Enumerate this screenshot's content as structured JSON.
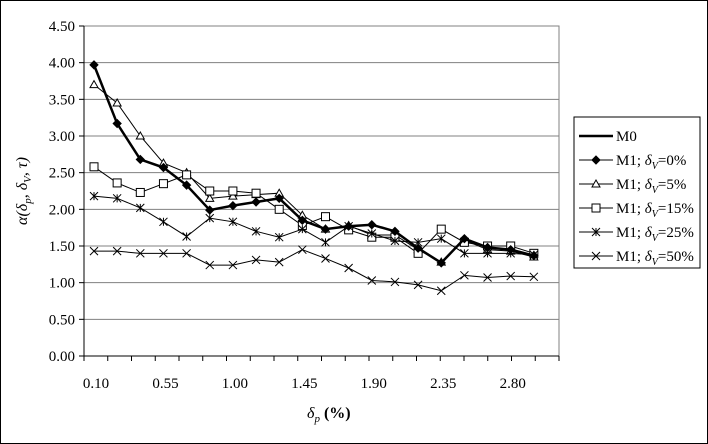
{
  "chart_data": {
    "type": "line",
    "xlabel": "δp (%)",
    "ylabel": "α(δp, δV, τ)",
    "ylim": [
      0,
      4.5
    ],
    "y_ticks": [
      "0.00",
      "0.50",
      "1.00",
      "1.50",
      "2.00",
      "2.50",
      "3.00",
      "3.50",
      "4.00",
      "4.50"
    ],
    "x_tick_labels": [
      "0.10",
      "0.55",
      "1.00",
      "1.45",
      "1.90",
      "2.35",
      "2.80"
    ],
    "x": [
      0.1,
      0.25,
      0.4,
      0.55,
      0.7,
      0.85,
      1.0,
      1.15,
      1.3,
      1.45,
      1.6,
      1.75,
      1.9,
      2.05,
      2.2,
      2.35,
      2.5,
      2.65,
      2.8,
      2.95
    ],
    "grid": true,
    "legend_position": "right",
    "series": [
      {
        "name": "M0",
        "marker": "none",
        "values": [
          3.97,
          3.17,
          2.68,
          2.57,
          2.33,
          1.99,
          2.05,
          2.1,
          2.15,
          1.85,
          1.73,
          1.77,
          1.79,
          1.7,
          1.47,
          1.27,
          1.6,
          1.48,
          1.45,
          1.37
        ]
      },
      {
        "name": "M1; δV=0%",
        "marker": "diamond",
        "values": [
          3.97,
          3.17,
          2.68,
          2.57,
          2.33,
          1.99,
          2.05,
          2.1,
          2.15,
          1.85,
          1.73,
          1.77,
          1.79,
          1.7,
          1.47,
          1.27,
          1.6,
          1.48,
          1.45,
          1.37
        ]
      },
      {
        "name": "M1; δV=5%",
        "marker": "triangle",
        "values": [
          3.7,
          3.45,
          3.0,
          2.63,
          2.5,
          2.15,
          2.18,
          2.2,
          2.22,
          1.92,
          1.73,
          1.78,
          1.65,
          1.65,
          1.45,
          1.28,
          1.58,
          1.45,
          1.43,
          1.35
        ]
      },
      {
        "name": "M1; δV=15%",
        "marker": "square",
        "values": [
          2.58,
          2.36,
          2.23,
          2.35,
          2.47,
          2.25,
          2.25,
          2.22,
          2.0,
          1.78,
          1.9,
          1.72,
          1.62,
          1.62,
          1.4,
          1.73,
          1.55,
          1.5,
          1.5,
          1.4
        ]
      },
      {
        "name": "M1; δV=25%",
        "marker": "star",
        "values": [
          2.18,
          2.15,
          2.02,
          1.83,
          1.63,
          1.88,
          1.83,
          1.7,
          1.62,
          1.73,
          1.55,
          1.77,
          1.67,
          1.57,
          1.55,
          1.6,
          1.4,
          1.4,
          1.4,
          1.38
        ]
      },
      {
        "name": "M1; δV=50%",
        "marker": "x",
        "values": [
          1.43,
          1.43,
          1.4,
          1.4,
          1.4,
          1.24,
          1.24,
          1.31,
          1.28,
          1.45,
          1.33,
          1.2,
          1.03,
          1.01,
          0.97,
          0.89,
          1.1,
          1.07,
          1.09,
          1.08
        ]
      }
    ]
  }
}
